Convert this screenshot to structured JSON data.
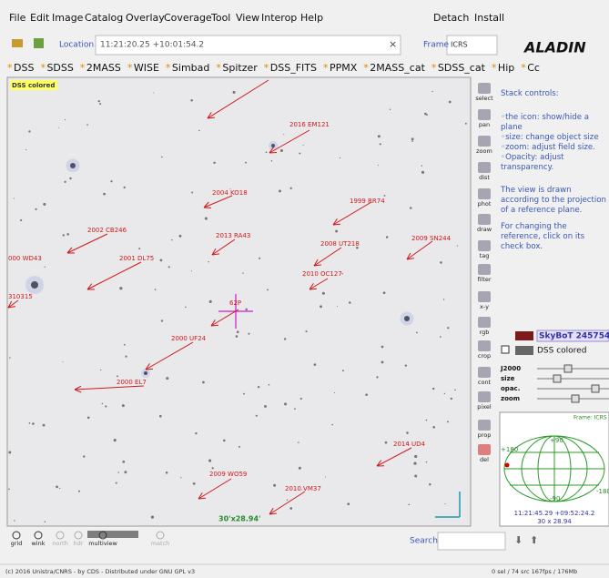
{
  "menu": {
    "items": [
      "File",
      "Edit",
      "Image",
      "Catalog",
      "Overlay",
      "Coverage",
      "Tool",
      "View",
      "Interop",
      "Help"
    ],
    "right": [
      "Detach",
      "Install"
    ]
  },
  "toolbar": {
    "location_label": "Location",
    "location_value": "11:21:20.25 +10:01:54.2",
    "clear": "×",
    "frame_label": "Frame",
    "frame_value": "ICRS",
    "logo": "ALADIN"
  },
  "catalogs": [
    "DSS",
    "SDSS",
    "2MASS",
    "WISE",
    "Simbad",
    "Spitzer",
    "DSS_FITS",
    "PPMX",
    "2MASS_cat",
    "SDSS_cat",
    "Hip",
    "Cc"
  ],
  "view": {
    "image_label": "DSS colored",
    "objects": [
      "2016 EM121",
      "2004 KO18",
      "1999 RR74",
      "2002 CB246",
      "2013 RA43",
      "2009 SN244",
      "2008 UT218",
      "2001 DL75",
      "000 WD43",
      "2010 OC127",
      "310315",
      "62P",
      "2000 UF24",
      "2000 EL7",
      "2014 UD4",
      "2009 WO59",
      "2010 VM37"
    ],
    "fov": "30'x28.94'"
  },
  "tools": [
    "select",
    "pan",
    "zoom",
    "dist",
    "phot",
    "draw",
    "tag",
    "filter",
    "x-y",
    "rgb",
    "crop",
    "cont",
    "pixel",
    "prop",
    "del"
  ],
  "panel": {
    "title": "Stack controls:",
    "bullets": [
      "the icon: show/hide a plane",
      "size: change object size",
      "zoom: adjust field size.",
      "Opacity: adjust transparency."
    ],
    "paragraphs": [
      "The view is drawn according to the projection of a reference plane.",
      "For changing the reference, click on its check box."
    ],
    "planes": [
      "SkyBoT 2457543.4",
      "DSS colored"
    ],
    "controls": [
      "J2000",
      "size",
      "opac.",
      "zoom"
    ],
    "overview": {
      "frame": "Frame: ICRS",
      "labels": [
        "+90",
        "+180",
        "-180",
        "-90"
      ],
      "coords": "11:21:45.29 +09:52:24.2",
      "size": "30 x 28.94"
    }
  },
  "bottom": {
    "buttons": [
      "grid",
      "wink",
      "north",
      "hdr",
      "multiview",
      "match"
    ],
    "search": "Search"
  },
  "status": {
    "copyright": "(c) 2016 Unistra/CNRS - by CDS - Distributed under GNU GPL v3",
    "stats": "0 sel / 74 src  167fps / 176Mb"
  }
}
